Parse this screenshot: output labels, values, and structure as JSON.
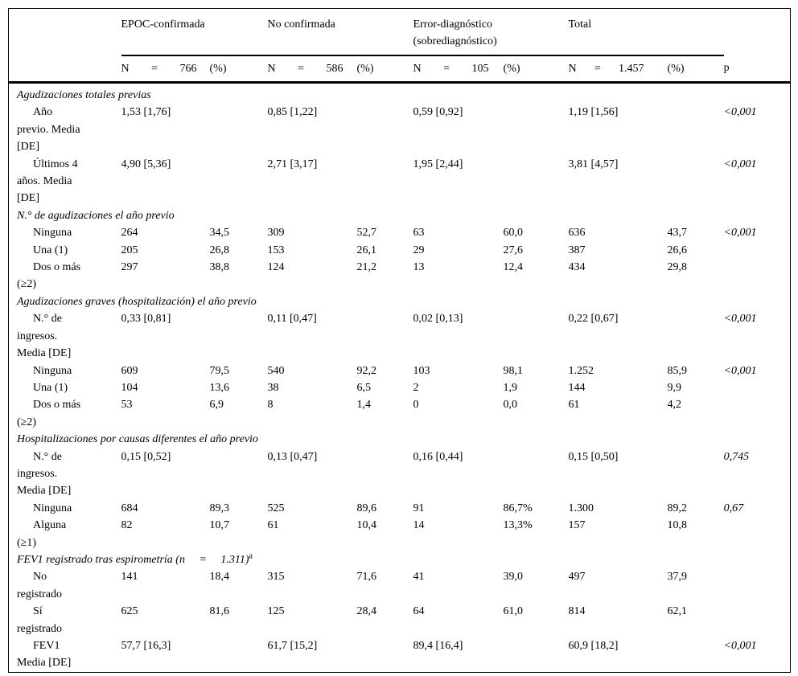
{
  "page": {
    "background": "#ffffff",
    "text_color": "#000000",
    "border_color": "#000000"
  },
  "table": {
    "n_label": "N",
    "eq_sign": "=",
    "p_column_label": "p",
    "groups": [
      {
        "label": "EPOC-confirmada",
        "n_value": "766",
        "pct_label": "(%)"
      },
      {
        "label": "No confirmada",
        "n_value": "586",
        "pct_label": "(%)"
      },
      {
        "label": "Error-diagnóstico (sobrediagnóstico)",
        "n_value": "105",
        "pct_label": "(%)"
      },
      {
        "label": "Total",
        "n_value": "1.457",
        "pct_label": "(%)"
      }
    ],
    "sections": [
      {
        "header": "Agudizaciones totales previas",
        "rows": [
          {
            "label_lines": [
              "Año",
              "previo. Media",
              "[DE]"
            ],
            "cells": [
              "1,53 [1,76]",
              "",
              "0,85 [1,22]",
              "",
              "0,59 [0,92]",
              "",
              "1,19 [1,56]",
              ""
            ],
            "p": "<0,001"
          },
          {
            "label_lines": [
              "Últimos 4",
              "años. Media",
              "[DE]"
            ],
            "cells": [
              "4,90 [5,36]",
              "",
              "2,71 [3,17]",
              "",
              "1,95 [2,44]",
              "",
              "3,81 [4,57]",
              ""
            ],
            "p": "<0,001"
          }
        ]
      },
      {
        "header": "N.° de agudizaciones el año previo",
        "rows": [
          {
            "label_lines": [
              "Ninguna"
            ],
            "cells": [
              "264",
              "34,5",
              "309",
              "52,7",
              "63",
              "60,0",
              "636",
              "43,7"
            ],
            "p": "<0,001"
          },
          {
            "label_lines": [
              "Una (1)"
            ],
            "cells": [
              "205",
              "26,8",
              "153",
              "26,1",
              "29",
              "27,6",
              "387",
              "26,6"
            ],
            "p": ""
          },
          {
            "label_lines": [
              "Dos o más",
              "(≥2)"
            ],
            "cells": [
              "297",
              "38,8",
              "124",
              "21,2",
              "13",
              "12,4",
              "434",
              "29,8"
            ],
            "p": ""
          }
        ]
      },
      {
        "header": "Agudizaciones graves (hospitalización) el año previo",
        "rows": [
          {
            "label_lines": [
              "N.° de",
              "ingresos.",
              "Media [DE]"
            ],
            "cells": [
              "0,33 [0,81]",
              "",
              "0,11 [0,47]",
              "",
              "0,02 [0,13]",
              "",
              "0,22 [0,67]",
              ""
            ],
            "p": "<0,001"
          },
          {
            "label_lines": [
              "Ninguna"
            ],
            "cells": [
              "609",
              "79,5",
              "540",
              "92,2",
              "103",
              "98,1",
              "1.252",
              "85,9"
            ],
            "p": "<0,001"
          },
          {
            "label_lines": [
              "Una (1)"
            ],
            "cells": [
              "104",
              "13,6",
              "38",
              "6,5",
              "2",
              "1,9",
              "144",
              "9,9"
            ],
            "p": ""
          },
          {
            "label_lines": [
              "Dos o más",
              "(≥2)"
            ],
            "cells": [
              "53",
              "6,9",
              "8",
              "1,4",
              "0",
              "0,0",
              "61",
              "4,2"
            ],
            "p": ""
          }
        ]
      },
      {
        "header": "Hospitalizaciones por causas diferentes el año previo",
        "rows": [
          {
            "label_lines": [
              "N.° de",
              "ingresos.",
              "Media [DE]"
            ],
            "cells": [
              "0,15 [0,52]",
              "",
              "0,13 [0,47]",
              "",
              "0,16 [0,44]",
              "",
              "0,15 [0,50]",
              ""
            ],
            "p": "0,745"
          },
          {
            "label_lines": [
              "Ninguna"
            ],
            "cells": [
              "684",
              "89,3",
              "525",
              "89,6",
              "91",
              "86,7%",
              "1.300",
              "89,2"
            ],
            "p": "0,67"
          },
          {
            "label_lines": [
              "Alguna",
              "(≥1)"
            ],
            "cells": [
              "82",
              "10,7",
              "61",
              "10,4",
              "14",
              "13,3%",
              "157",
              "10,8"
            ],
            "p": ""
          }
        ]
      },
      {
        "header": "FEV1 registrado tras espirometría (n     =     1.311)",
        "header_sup": "a",
        "rows": [
          {
            "label_lines": [
              "No",
              "registrado"
            ],
            "cells": [
              "141",
              "18,4",
              "315",
              "71,6",
              "41",
              "39,0",
              "497",
              "37,9"
            ],
            "p": ""
          },
          {
            "label_lines": [
              "Sí",
              "registrado"
            ],
            "cells": [
              "625",
              "81,6",
              "125",
              "28,4",
              "64",
              "61,0",
              "814",
              "62,1"
            ],
            "p": ""
          },
          {
            "label_lines": [
              "FEV1",
              "Media [DE]"
            ],
            "cells": [
              "57,7 [16,3]",
              "",
              "61,7 [15,2]",
              "",
              "89,4 [16,4]",
              "",
              "60,9 [18,2]",
              ""
            ],
            "p": "<0,001"
          }
        ]
      }
    ]
  }
}
